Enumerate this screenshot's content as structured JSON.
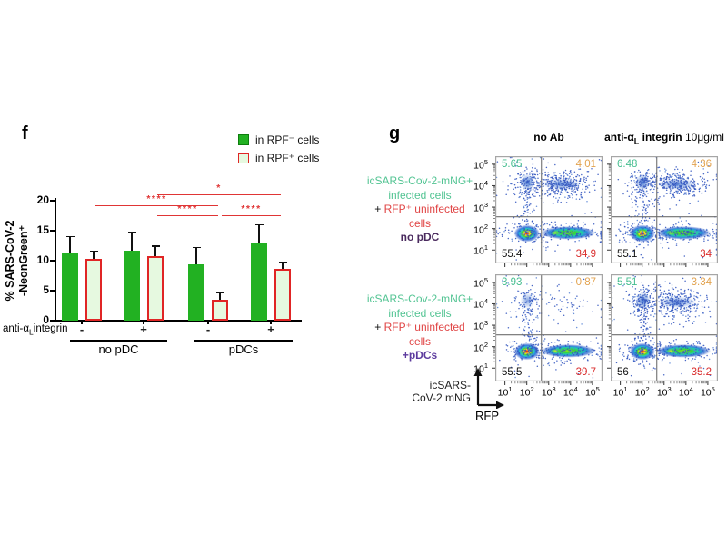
{
  "colors": {
    "bar_green": "#22b122",
    "bar_light_fill": "#e6f9e0",
    "bar_red_border": "#e02525",
    "sig_red": "#e03535",
    "label_green": "#53c493",
    "label_red": "#e04545",
    "purple_no_pdc": "#4a2a5e",
    "purple_pdcs": "#5c3a9e",
    "num_teal": "#45bd8f",
    "num_orange": "#e2a24e",
    "num_red": "#d92b2b",
    "dot_blue": "#3558c0",
    "dot_blue_light": "#5b85d6"
  },
  "panel_f": {
    "label": "f",
    "legend": [
      {
        "text": "in RPF⁻ cells"
      },
      {
        "text": "in RPF⁺ cells"
      }
    ],
    "x_axis_label": {
      "pre": "anti-α",
      "sub": "L",
      "post": "integrin"
    },
    "sections": [
      "no pDC",
      "pDCs"
    ]
  },
  "chart_data": [
    {
      "type": "bar",
      "title": "",
      "ylabel_lines": [
        "% SARS-CoV-2",
        "-NeonGreen⁺"
      ],
      "ylim": [
        0,
        20
      ],
      "yticks": [
        0,
        5,
        10,
        15,
        20
      ],
      "categories": [
        "no pDC / anti-integrin −",
        "no pDC / anti-integrin +",
        "pDCs / anti-integrin −",
        "pDCs / anti-integrin +"
      ],
      "group_signs": [
        "-",
        "+",
        "-",
        "+"
      ],
      "series": [
        {
          "name": "in RPF⁻ cells",
          "values": [
            11.4,
            11.6,
            9.4,
            12.9
          ],
          "errors": [
            2.6,
            3.2,
            2.8,
            3.1
          ]
        },
        {
          "name": "in RPF⁺ cells",
          "values": [
            10.3,
            10.8,
            3.5,
            8.6
          ],
          "errors": [
            1.3,
            1.6,
            1.1,
            1.2
          ]
        }
      ],
      "significance": [
        {
          "from": 1,
          "to": 3,
          "label": "*",
          "level": 0
        },
        {
          "from": 0,
          "to": 2,
          "label": "****",
          "level": 1
        },
        {
          "from": 1,
          "to": 2,
          "label": "****",
          "level": 2
        },
        {
          "from": 2,
          "to": 3,
          "label": "****",
          "level": 2
        }
      ],
      "legend_position": "top-right",
      "grid": false
    },
    {
      "type": "scatter",
      "title": "no Ab / no pDC",
      "xlabel": "RFP",
      "ylabel": "icSARS-CoV-2 mNG",
      "xscale": "log",
      "yscale": "log",
      "xlim": [
        10,
        100000
      ],
      "ylim": [
        10,
        100000
      ],
      "quadrant_percent": {
        "upper_left": 5.65,
        "upper_right": 4.01,
        "lower_left": 55.4,
        "lower_right": 34.9
      }
    },
    {
      "type": "scatter",
      "title": "anti-αL integrin 10μg/ml / no pDC",
      "xlabel": "RFP",
      "ylabel": "icSARS-CoV-2 mNG",
      "xscale": "log",
      "yscale": "log",
      "xlim": [
        10,
        100000
      ],
      "ylim": [
        10,
        100000
      ],
      "quadrant_percent": {
        "upper_left": 6.48,
        "upper_right": 4.36,
        "lower_left": 55.1,
        "lower_right": 34
      }
    },
    {
      "type": "scatter",
      "title": "no Ab / +pDCs",
      "xlabel": "RFP",
      "ylabel": "icSARS-CoV-2 mNG",
      "xscale": "log",
      "yscale": "log",
      "xlim": [
        10,
        100000
      ],
      "ylim": [
        10,
        100000
      ],
      "quadrant_percent": {
        "upper_left": 3.93,
        "upper_right": 0.87,
        "lower_left": 55.5,
        "lower_right": 39.7
      }
    },
    {
      "type": "scatter",
      "title": "anti-αL integrin 10μg/ml / +pDCs",
      "xlabel": "RFP",
      "ylabel": "icSARS-CoV-2 mNG",
      "xscale": "log",
      "yscale": "log",
      "xlim": [
        10,
        100000
      ],
      "ylim": [
        10,
        100000
      ],
      "quadrant_percent": {
        "upper_left": 5.51,
        "upper_right": 3.34,
        "lower_left": 56,
        "lower_right": 35.2
      }
    }
  ],
  "panel_g": {
    "label": "g",
    "col_headers": [
      {
        "bold": "no Ab"
      },
      {
        "bold_pre": "anti-α",
        "sub": "L",
        "bold_post": " integrin",
        "normal": " 10μg/ml"
      }
    ],
    "row_labels": [
      {
        "green1": "icSARS-Cov-2-mNG+",
        "green2": "infected cells",
        "plus": "+ ",
        "red1": "RFP⁺ uninfected",
        "red2": "cells",
        "condition": "no pDC"
      },
      {
        "green1": "icSARS-Cov-2-mNG+",
        "green2": "infected cells",
        "plus": "+ ",
        "red1": "RFP⁺ uninfected",
        "red2": "cells",
        "condition": "+pDCs"
      }
    ],
    "plots": [
      {
        "q_tl": "5.65",
        "q_tr": "4.01",
        "q_bl": "55.4",
        "q_br": "34.9"
      },
      {
        "q_tl": "6.48",
        "q_tr": "4.36",
        "q_bl": "55.1",
        "q_br": "34"
      },
      {
        "q_tl": "3.93",
        "q_tr": "0.87",
        "q_bl": "55.5",
        "q_br": "39.7"
      },
      {
        "q_tl": "5.51",
        "q_tr": "3.34",
        "q_bl": "56",
        "q_br": "35.2"
      }
    ],
    "axis_arrow_labels": {
      "y1": "icSARS-",
      "y2": "CoV-2 mNG",
      "x": "RFP"
    },
    "tick_exponents": [
      1,
      2,
      3,
      4,
      5
    ]
  }
}
